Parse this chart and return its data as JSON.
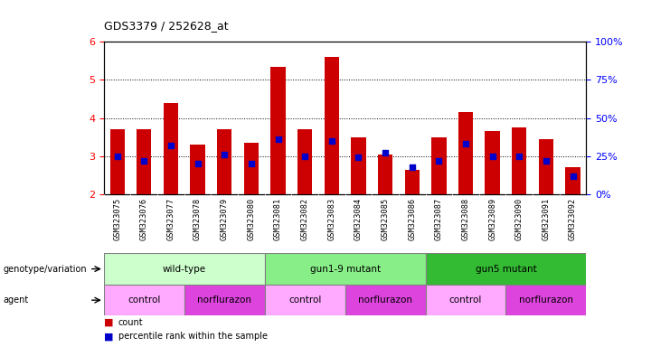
{
  "title": "GDS3379 / 252628_at",
  "samples": [
    "GSM323075",
    "GSM323076",
    "GSM323077",
    "GSM323078",
    "GSM323079",
    "GSM323080",
    "GSM323081",
    "GSM323082",
    "GSM323083",
    "GSM323084",
    "GSM323085",
    "GSM323086",
    "GSM323087",
    "GSM323088",
    "GSM323089",
    "GSM323090",
    "GSM323091",
    "GSM323092"
  ],
  "counts": [
    3.7,
    3.7,
    4.4,
    3.3,
    3.7,
    3.35,
    5.35,
    3.7,
    5.6,
    3.5,
    3.05,
    2.65,
    3.5,
    4.15,
    3.65,
    3.75,
    3.45,
    2.7
  ],
  "percentile_ranks": [
    25,
    22,
    32,
    20,
    26,
    20,
    36,
    25,
    35,
    24,
    27,
    18,
    22,
    33,
    25,
    25,
    22,
    12
  ],
  "ylim_left": [
    2,
    6
  ],
  "ylim_right": [
    0,
    100
  ],
  "yticks_left": [
    2,
    3,
    4,
    5,
    6
  ],
  "yticks_right": [
    0,
    25,
    50,
    75,
    100
  ],
  "bar_color": "#cc0000",
  "dot_color": "#0000cc",
  "bg_color": "#ffffff",
  "plot_bg": "#ffffff",
  "genotype_groups": [
    {
      "label": "wild-type",
      "start": 0,
      "end": 6,
      "color": "#ccffcc"
    },
    {
      "label": "gun1-9 mutant",
      "start": 6,
      "end": 12,
      "color": "#88ee88"
    },
    {
      "label": "gun5 mutant",
      "start": 12,
      "end": 18,
      "color": "#33bb33"
    }
  ],
  "agent_groups": [
    {
      "label": "control",
      "start": 0,
      "end": 3,
      "color": "#ffaaff"
    },
    {
      "label": "norflurazon",
      "start": 3,
      "end": 6,
      "color": "#dd44dd"
    },
    {
      "label": "control",
      "start": 6,
      "end": 9,
      "color": "#ffaaff"
    },
    {
      "label": "norflurazon",
      "start": 9,
      "end": 12,
      "color": "#dd44dd"
    },
    {
      "label": "control",
      "start": 12,
      "end": 15,
      "color": "#ffaaff"
    },
    {
      "label": "norflurazon",
      "start": 15,
      "end": 18,
      "color": "#dd44dd"
    }
  ],
  "legend_items": [
    {
      "label": "count",
      "color": "#cc0000"
    },
    {
      "label": "percentile rank within the sample",
      "color": "#0000cc"
    }
  ]
}
